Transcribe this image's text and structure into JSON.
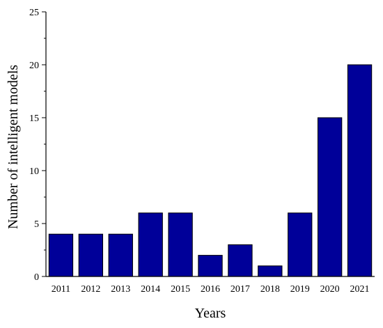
{
  "chart_data": {
    "type": "bar",
    "title": "",
    "xlabel": "Years",
    "ylabel": "Number of intelligent models",
    "categories": [
      "2011",
      "2012",
      "2013",
      "2014",
      "2015",
      "2016",
      "2017",
      "2018",
      "2019",
      "2020",
      "2021"
    ],
    "values": [
      4,
      4,
      4,
      6,
      6,
      2,
      3,
      1,
      6,
      15,
      20
    ],
    "ylim": [
      0,
      25
    ],
    "yticks": [
      "0",
      "5",
      "10",
      "15",
      "20",
      "25"
    ],
    "grid": false,
    "legend": "none",
    "bar_color": "#000099",
    "bar_edge_color": "#000000"
  }
}
